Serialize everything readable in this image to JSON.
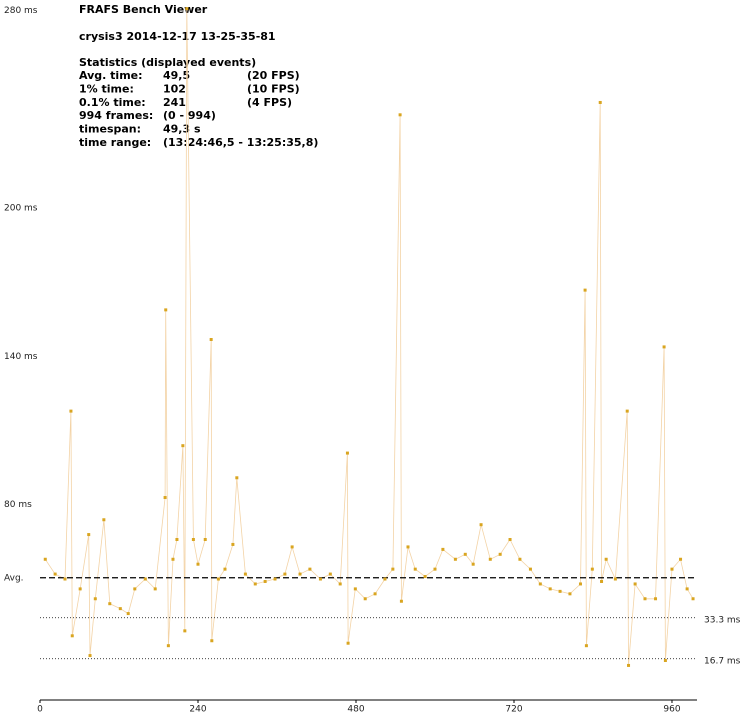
{
  "header": {
    "app": "FRAFS Bench Viewer",
    "file": "crysis3 2014-12-17 13-25-35-81"
  },
  "stats": {
    "heading": "Statistics (displayed events)",
    "rows": [
      [
        "Avg. time:",
        "49,5",
        "(20 FPS)"
      ],
      [
        "1% time:",
        "102",
        "(10 FPS)"
      ],
      [
        "0.1% time:",
        "241",
        "(4 FPS)"
      ],
      [
        "994 frames:",
        "(0 - 994)"
      ],
      [
        "timespan:",
        "49,3 s"
      ],
      [
        "time range:",
        "(13:24:46,5 - 13:25:35,8)"
      ]
    ]
  },
  "chart_data": {
    "type": "scatter",
    "color": "#d9a520",
    "xlim": [
      0,
      998
    ],
    "xticks": [
      0,
      240,
      480,
      720,
      960
    ],
    "ylim": [
      0,
      283.5
    ],
    "yticks": [
      {
        "value": 80,
        "label": "80 ms"
      },
      {
        "value": 140,
        "label": "140 ms"
      },
      {
        "value": 200,
        "label": "200 ms"
      },
      {
        "value": 280,
        "label": "280 ms"
      }
    ],
    "reference_lines": [
      {
        "label": "Avg.",
        "value": 49.5
      },
      {
        "label": "33.3 ms",
        "value": 33.3
      },
      {
        "label": "16.7 ms",
        "value": 16.7
      }
    ],
    "x": [
      8,
      23,
      38,
      47,
      49,
      61,
      74,
      76,
      84,
      97,
      106,
      122,
      134,
      144,
      160,
      175,
      190,
      191,
      195,
      202,
      208,
      217,
      220,
      223,
      233,
      240,
      251,
      260,
      261,
      271,
      281,
      293,
      299,
      312,
      327,
      342,
      357,
      372,
      383,
      395,
      410,
      426,
      441,
      456,
      467,
      468,
      479,
      494,
      509,
      524,
      536,
      547,
      549,
      559,
      570,
      585,
      600,
      612,
      631,
      646,
      658,
      670,
      684,
      699,
      714,
      729,
      745,
      760,
      775,
      790,
      805,
      821,
      828,
      830,
      839,
      851,
      853,
      860,
      874,
      892,
      894,
      904,
      919,
      935,
      948,
      950,
      960,
      973,
      983,
      992
    ],
    "values": [
      57,
      51,
      49,
      117,
      26,
      45,
      67,
      18,
      41,
      73,
      39,
      37,
      35,
      45,
      49,
      45,
      82,
      158,
      22,
      57,
      65,
      103,
      28,
      280,
      65,
      55,
      65,
      146,
      24,
      49,
      53,
      63,
      90,
      51,
      47,
      48,
      49,
      51,
      62,
      51,
      53,
      49,
      51,
      47,
      100,
      23,
      45,
      41,
      43,
      49,
      53,
      237,
      40,
      62,
      53,
      50,
      53,
      61,
      57,
      59,
      55,
      71,
      57,
      59,
      65,
      57,
      53,
      47,
      45,
      44,
      43,
      47,
      166,
      22,
      53,
      242,
      48,
      57,
      49,
      117,
      14,
      47,
      41,
      41,
      143,
      16,
      53,
      57,
      45,
      41
    ]
  }
}
